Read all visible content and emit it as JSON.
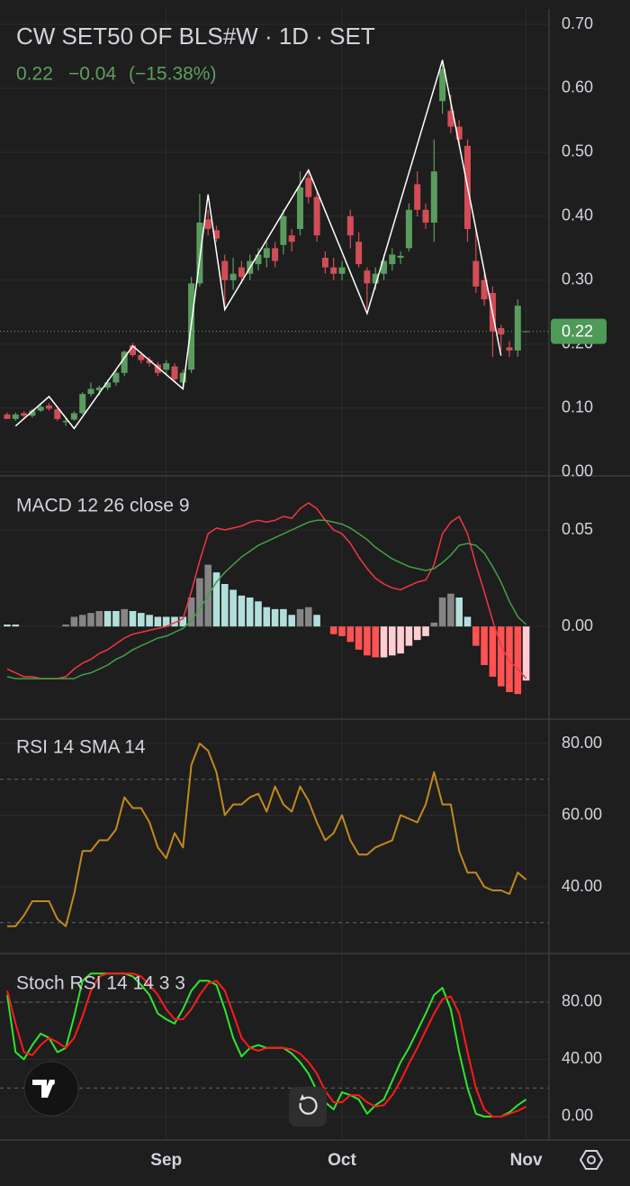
{
  "chart_data": [
    {
      "type": "candlestick",
      "title": "CW SET50 OF BLS#W · 1D · SET",
      "legend_values": [
        "0.22",
        "−0.04",
        "(−15.38%)"
      ],
      "up_color": "#5a9c5e",
      "down_color": "#d24d57",
      "open": [
        0.09,
        0.083,
        0.092,
        0.088,
        0.096,
        0.104,
        0.098,
        0.078,
        0.082,
        0.092,
        0.122,
        0.128,
        0.132,
        0.14,
        0.155,
        0.198,
        0.183,
        0.175,
        0.168,
        0.16,
        0.165,
        0.14,
        0.16,
        0.295,
        0.395,
        0.378,
        0.33,
        0.3,
        0.32,
        0.31,
        0.325,
        0.335,
        0.35,
        0.355,
        0.37,
        0.38,
        0.46,
        0.43,
        0.335,
        0.32,
        0.31,
        0.4,
        0.36,
        0.315,
        0.295,
        0.31,
        0.325,
        0.335,
        0.35,
        0.45,
        0.41,
        0.39,
        0.58,
        0.565,
        0.54,
        0.51,
        0.33,
        0.3,
        0.28,
        0.225,
        0.195,
        0.19,
        0.22
      ],
      "high": [
        0.093,
        0.093,
        0.095,
        0.098,
        0.105,
        0.108,
        0.1,
        0.085,
        0.095,
        0.125,
        0.14,
        0.135,
        0.145,
        0.16,
        0.19,
        0.202,
        0.188,
        0.18,
        0.172,
        0.175,
        0.17,
        0.16,
        0.305,
        0.435,
        0.41,
        0.385,
        0.34,
        0.335,
        0.33,
        0.34,
        0.35,
        0.36,
        0.36,
        0.41,
        0.38,
        0.47,
        0.472,
        0.44,
        0.345,
        0.335,
        0.33,
        0.41,
        0.375,
        0.32,
        0.32,
        0.34,
        0.35,
        0.345,
        0.42,
        0.47,
        0.42,
        0.52,
        0.645,
        0.59,
        0.55,
        0.52,
        0.38,
        0.31,
        0.29,
        0.23,
        0.205,
        0.27,
        0.22
      ],
      "low": [
        0.083,
        0.08,
        0.086,
        0.085,
        0.094,
        0.096,
        0.08,
        0.072,
        0.08,
        0.09,
        0.118,
        0.12,
        0.128,
        0.135,
        0.15,
        0.18,
        0.17,
        0.165,
        0.15,
        0.152,
        0.14,
        0.13,
        0.155,
        0.29,
        0.37,
        0.36,
        0.255,
        0.285,
        0.295,
        0.3,
        0.315,
        0.32,
        0.32,
        0.34,
        0.345,
        0.37,
        0.42,
        0.36,
        0.31,
        0.3,
        0.3,
        0.35,
        0.32,
        0.255,
        0.285,
        0.3,
        0.315,
        0.325,
        0.345,
        0.4,
        0.38,
        0.36,
        0.56,
        0.53,
        0.51,
        0.36,
        0.28,
        0.26,
        0.18,
        0.19,
        0.18,
        0.18,
        0.22
      ],
      "close": [
        0.083,
        0.09,
        0.088,
        0.096,
        0.102,
        0.099,
        0.083,
        0.08,
        0.092,
        0.122,
        0.13,
        0.132,
        0.14,
        0.155,
        0.188,
        0.183,
        0.175,
        0.17,
        0.155,
        0.17,
        0.145,
        0.155,
        0.295,
        0.39,
        0.38,
        0.365,
        0.3,
        0.31,
        0.305,
        0.33,
        0.34,
        0.35,
        0.33,
        0.4,
        0.36,
        0.445,
        0.43,
        0.37,
        0.32,
        0.31,
        0.32,
        0.37,
        0.325,
        0.295,
        0.31,
        0.33,
        0.34,
        0.338,
        0.41,
        0.41,
        0.39,
        0.47,
        0.63,
        0.54,
        0.52,
        0.38,
        0.29,
        0.27,
        0.22,
        0.215,
        0.19,
        0.26,
        0.22
      ],
      "zigzag": {
        "color": "#ffffff",
        "x": [
          1,
          5,
          8,
          15,
          21,
          24,
          26,
          36,
          43,
          52,
          59
        ],
        "y": [
          0.072,
          0.118,
          0.068,
          0.197,
          0.13,
          0.434,
          0.254,
          0.472,
          0.248,
          0.644,
          0.182
        ]
      },
      "last_price": 0.22,
      "last_color": "#4e9a57",
      "ylim": [
        -0.006,
        0.724
      ],
      "yticks": [
        {
          "value": 0.7,
          "label": "0.70"
        },
        {
          "value": 0.6,
          "label": "0.60"
        },
        {
          "value": 0.5,
          "label": "0.50"
        },
        {
          "value": 0.4,
          "label": "0.40"
        },
        {
          "value": 0.3,
          "label": "0.30"
        },
        {
          "value": 0.2,
          "label": "0.20"
        },
        {
          "value": 0.1,
          "label": "0.10"
        },
        {
          "value": 0,
          "label": "0.00"
        }
      ],
      "grid": true
    },
    {
      "type": "macd",
      "legend": "MACD 12 26 close 9",
      "macd": {
        "color": "#f23645",
        "values": [
          -0.022,
          -0.024,
          -0.026,
          -0.026,
          -0.027,
          -0.027,
          -0.027,
          -0.026,
          -0.022,
          -0.019,
          -0.017,
          -0.014,
          -0.012,
          -0.009,
          -0.006,
          -0.004,
          -0.003,
          -0.002,
          -0.001,
          0,
          0.002,
          0.004,
          0.018,
          0.034,
          0.048,
          0.051,
          0.05,
          0.051,
          0.052,
          0.054,
          0.055,
          0.054,
          0.055,
          0.057,
          0.056,
          0.061,
          0.064,
          0.061,
          0.055,
          0.05,
          0.048,
          0.043,
          0.036,
          0.03,
          0.025,
          0.022,
          0.02,
          0.019,
          0.021,
          0.023,
          0.024,
          0.032,
          0.048,
          0.054,
          0.057,
          0.048,
          0.032,
          0.018,
          0.003,
          -0.01,
          -0.018,
          -0.022,
          -0.027
        ]
      },
      "signal": {
        "color": "#43a047",
        "values": [
          -0.026,
          -0.027,
          -0.027,
          -0.027,
          -0.027,
          -0.027,
          -0.027,
          -0.027,
          -0.027,
          -0.025,
          -0.024,
          -0.022,
          -0.02,
          -0.017,
          -0.015,
          -0.012,
          -0.01,
          -0.008,
          -0.006,
          -0.005,
          -0.003,
          -0.001,
          0.003,
          0.009,
          0.016,
          0.023,
          0.028,
          0.032,
          0.036,
          0.039,
          0.042,
          0.044,
          0.046,
          0.048,
          0.05,
          0.052,
          0.054,
          0.055,
          0.055,
          0.054,
          0.053,
          0.051,
          0.048,
          0.045,
          0.041,
          0.038,
          0.035,
          0.033,
          0.031,
          0.03,
          0.029,
          0.03,
          0.033,
          0.037,
          0.042,
          0.043,
          0.042,
          0.038,
          0.031,
          0.023,
          0.013,
          0.005,
          0.001
        ]
      },
      "histogram": {
        "colors": {
          "rising_above": "#858585",
          "falling_above": "#b2dfdb",
          "falling_below": "#ff5252",
          "rising_below": "#ffcdd2"
        },
        "values": [
          0.001,
          0.001,
          0,
          0,
          0,
          0,
          0,
          0.001,
          0.005,
          0.006,
          0.007,
          0.008,
          0.008,
          0.008,
          0.009,
          0.008,
          0.007,
          0.006,
          0.005,
          0.005,
          0.005,
          0.005,
          0.015,
          0.025,
          0.032,
          0.028,
          0.022,
          0.019,
          0.016,
          0.015,
          0.013,
          0.01,
          0.009,
          0.009,
          0.006,
          0.009,
          0.01,
          0.006,
          0,
          -0.004,
          -0.005,
          -0.008,
          -0.012,
          -0.015,
          -0.016,
          -0.016,
          -0.015,
          -0.014,
          -0.01,
          -0.007,
          -0.005,
          0.002,
          0.015,
          0.017,
          0.015,
          0.005,
          -0.01,
          -0.02,
          -0.026,
          -0.031,
          -0.034,
          -0.035,
          -0.028
        ]
      },
      "ylim": [
        -0.048,
        0.078
      ],
      "yticks": [
        {
          "value": 0.05,
          "label": "0.05"
        },
        {
          "value": 0,
          "label": "0.00"
        }
      ],
      "grid": true
    },
    {
      "type": "line",
      "legend": "RSI 14 SMA 14",
      "series": [
        {
          "color": "#c18a1c",
          "values": [
            29,
            29,
            32,
            36,
            36,
            36,
            31,
            29,
            38,
            50,
            50,
            53,
            53,
            56,
            65,
            62,
            62,
            58,
            51,
            48,
            55,
            51,
            74,
            80,
            78,
            72,
            60,
            63,
            63,
            65,
            66,
            61,
            68,
            63,
            61,
            68,
            64,
            58,
            53,
            55,
            60,
            53,
            49,
            49,
            51,
            52,
            53,
            60,
            59,
            58,
            63,
            72,
            63,
            63,
            50,
            44,
            44,
            40,
            39,
            39,
            38,
            44,
            42
          ]
        }
      ],
      "bands": [
        70,
        30
      ],
      "ylim": [
        21.4,
        86.8
      ],
      "yticks": [
        {
          "value": 80,
          "label": "80.00"
        },
        {
          "value": 60,
          "label": "60.00"
        },
        {
          "value": 40,
          "label": "40.00"
        }
      ],
      "grid": true
    },
    {
      "type": "line",
      "legend": "Stoch RSI 14 14 3 3",
      "series": [
        {
          "color": "#2ee62e",
          "values": [
            85,
            45,
            40,
            50,
            58,
            55,
            45,
            48,
            70,
            95,
            100,
            100,
            100,
            100,
            100,
            98,
            92,
            85,
            72,
            68,
            65,
            75,
            88,
            95,
            95,
            92,
            75,
            55,
            42,
            48,
            50,
            48,
            48,
            48,
            44,
            38,
            30,
            18,
            10,
            5,
            17,
            15,
            12,
            2,
            8,
            12,
            25,
            38,
            48,
            60,
            72,
            85,
            90,
            75,
            45,
            20,
            2,
            0,
            0,
            0,
            3,
            8,
            12
          ]
        },
        {
          "color": "#ff1a1a",
          "values": [
            88,
            65,
            45,
            43,
            50,
            55,
            52,
            48,
            55,
            70,
            88,
            98,
            100,
            100,
            100,
            100,
            98,
            92,
            85,
            75,
            68,
            68,
            75,
            85,
            93,
            95,
            88,
            72,
            55,
            48,
            46,
            48,
            48,
            48,
            47,
            44,
            38,
            30,
            18,
            10,
            10,
            15,
            15,
            10,
            7,
            8,
            15,
            25,
            37,
            48,
            60,
            72,
            82,
            84,
            72,
            45,
            20,
            5,
            0,
            0,
            2,
            4,
            7
          ]
        }
      ],
      "bands": [
        80,
        20
      ],
      "ylim": [
        -16.4,
        114
      ],
      "yticks": [
        {
          "value": 80,
          "label": "80.00"
        },
        {
          "value": 40,
          "label": "40.00"
        },
        {
          "value": 0,
          "label": "0.00"
        }
      ],
      "grid": true,
      "categories": [
        null,
        null,
        null,
        null,
        null,
        null,
        null,
        null,
        null,
        null,
        null,
        null,
        null,
        null,
        null,
        null,
        null,
        null,
        null,
        "Sep",
        null,
        null,
        null,
        null,
        null,
        null,
        null,
        null,
        null,
        null,
        null,
        null,
        null,
        null,
        null,
        null,
        null,
        null,
        null,
        null,
        "Oct",
        null,
        null,
        null,
        null,
        null,
        null,
        null,
        null,
        null,
        null,
        null,
        null,
        null,
        null,
        null,
        null,
        null,
        null,
        null,
        null,
        null,
        "Nov"
      ]
    }
  ]
}
